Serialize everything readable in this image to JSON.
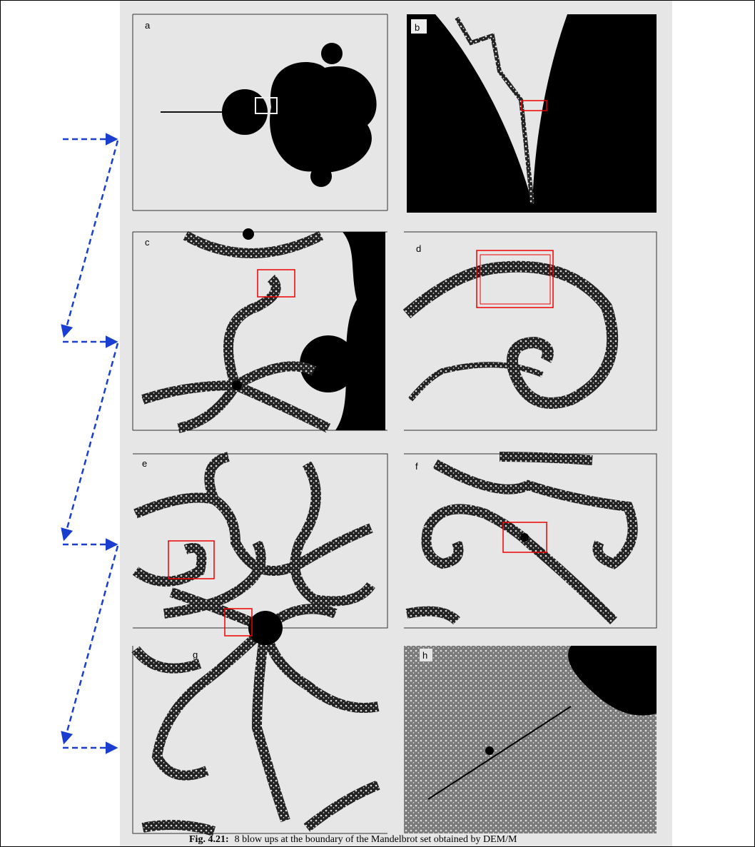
{
  "panels": [
    {
      "label": "a"
    },
    {
      "label": "b"
    },
    {
      "label": "c"
    },
    {
      "label": "d"
    },
    {
      "label": "e"
    },
    {
      "label": "f"
    },
    {
      "label": "g"
    },
    {
      "label": "h"
    }
  ],
  "caption": {
    "label": "Fig. 4.21:",
    "text": "8 blow ups at the boundary of the Mandelbrot set obtained by DEM/M"
  }
}
